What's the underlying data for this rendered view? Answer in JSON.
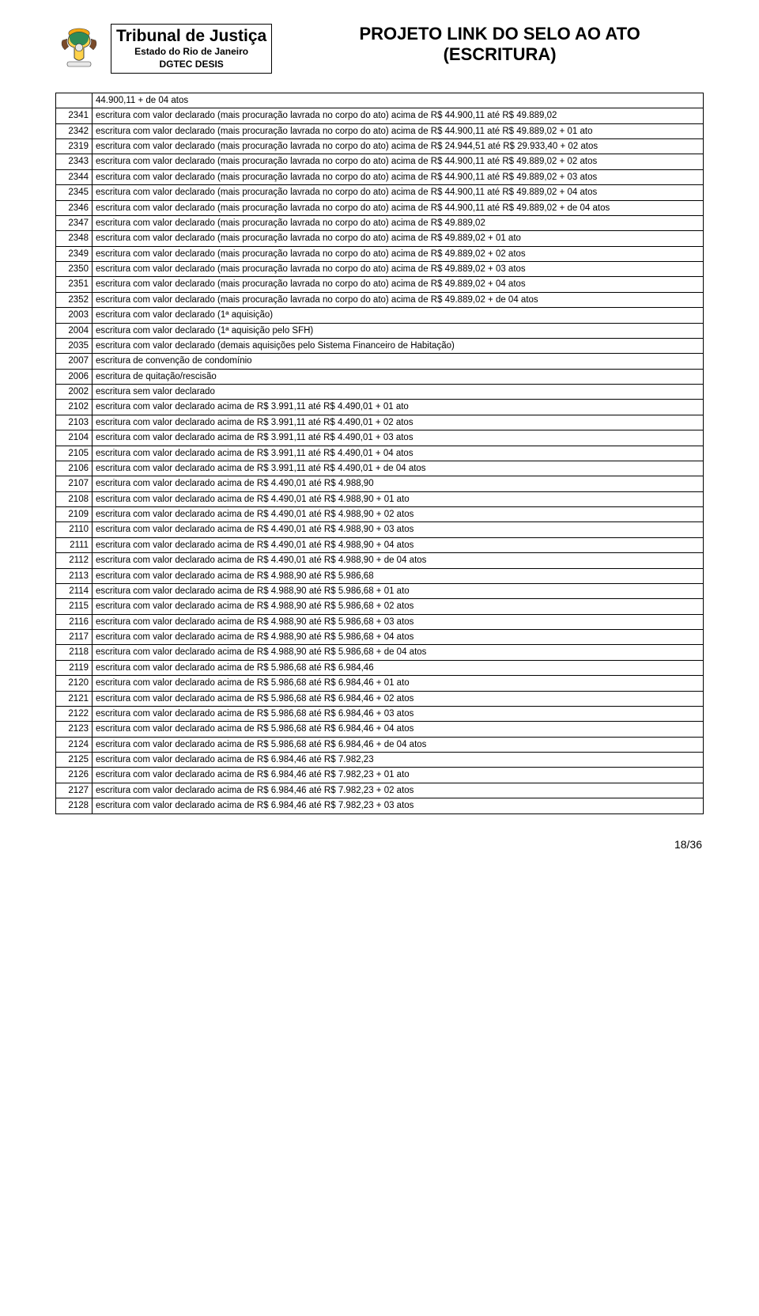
{
  "header": {
    "org_title": "Tribunal de Justiça",
    "org_sub1": "Estado do Rio de Janeiro",
    "org_sub2": "DGTEC DESIS",
    "proj_line1": "PROJETO LINK DO SELO AO ATO",
    "proj_line2": "(ESCRITURA)"
  },
  "footer": "18/36",
  "rows": [
    {
      "code": "",
      "desc": "44.900,11 + de 04 atos"
    },
    {
      "code": "2341",
      "desc": "escritura com valor  declarado (mais procuração lavrada no corpo do ato) acima de R$ 44.900,11 até R$ 49.889,02"
    },
    {
      "code": "2342",
      "desc": "escritura com valor declarado (mais procuração lavrada no corpo do ato) acima de R$ 44.900,11 até R$ 49.889,02 + 01 ato"
    },
    {
      "code": "2319",
      "desc": "escritura com valor declarado (mais procuração lavrada no corpo do ato) acima de R$ 24.944,51 até R$ 29.933,40 + 02 atos"
    },
    {
      "code": "2343",
      "desc": "escritura com valor declarado (mais procuração lavrada no corpo do ato) acima de R$ 44.900,11 até R$ 49.889,02 + 02 atos"
    },
    {
      "code": "2344",
      "desc": "escritura com valor declarado (mais procuração lavrada no corpo do ato) acima de R$ 44.900,11 até R$ 49.889,02 + 03 atos"
    },
    {
      "code": "2345",
      "desc": "escritura com valor declarado (mais procuração lavrada no corpo do ato) acima de R$ 44.900,11 até R$ 49.889,02 + 04 atos"
    },
    {
      "code": "2346",
      "desc": "escritura com valor declarado (mais procuração lavrada no corpo do ato) acima de R$ 44.900,11 até R$ 49.889,02 + de 04 atos"
    },
    {
      "code": "2347",
      "desc": "escritura com valor  declarado (mais procuração lavrada no corpo do ato) acima de R$ 49.889,02"
    },
    {
      "code": "2348",
      "desc": "escritura com valor declarado (mais procuração lavrada no corpo do ato) acima de R$ 49.889,02 + 01 ato"
    },
    {
      "code": "2349",
      "desc": "escritura com valor declarado (mais procuração lavrada no corpo do ato) acima de R$ 49.889,02 + 02 atos"
    },
    {
      "code": "2350",
      "desc": "escritura com valor declarado (mais procuração lavrada no corpo do ato) acima de R$ 49.889,02 + 03 atos"
    },
    {
      "code": "2351",
      "desc": "escritura com valor declarado (mais procuração lavrada no corpo do ato) acima de R$ 49.889,02 + 04 atos"
    },
    {
      "code": "2352",
      "desc": "escritura com valor declarado (mais procuração lavrada no corpo do ato) acima de R$ 49.889,02 + de 04 atos"
    },
    {
      "code": "2003",
      "desc": "escritura com valor declarado (1ª  aquisição)"
    },
    {
      "code": "2004",
      "desc": "escritura com valor declarado (1ª aquisição pelo SFH)"
    },
    {
      "code": "2035",
      "desc": "escritura com valor declarado (demais aquisições pelo Sistema Financeiro de Habitação)"
    },
    {
      "code": "2007",
      "desc": "escritura de convenção de condomínio"
    },
    {
      "code": "2006",
      "desc": "escritura de quitação/rescisão"
    },
    {
      "code": "2002",
      "desc": "escritura sem valor declarado"
    },
    {
      "code": "2102",
      "desc": "escritura com valor declarado acima de R$ 3.991,11 até R$ 4.490,01 + 01 ato"
    },
    {
      "code": "2103",
      "desc": "escritura com valor declarado acima de R$ 3.991,11 até R$ 4.490,01 + 02 atos"
    },
    {
      "code": "2104",
      "desc": "escritura com valor declarado acima de R$ 3.991,11 até R$ 4.490,01 + 03 atos"
    },
    {
      "code": "2105",
      "desc": "escritura com valor declarado acima de R$ 3.991,11 até R$ 4.490,01 + 04 atos"
    },
    {
      "code": "2106",
      "desc": "escritura com valor declarado acima de R$ 3.991,11 até R$ 4.490,01 + de 04 atos"
    },
    {
      "code": "2107",
      "desc": "escritura com valor declarado acima de R$ 4.490,01 até R$ 4.988,90"
    },
    {
      "code": "2108",
      "desc": "escritura com valor declarado acima de R$ 4.490,01 até R$ 4.988,90 + 01 ato"
    },
    {
      "code": "2109",
      "desc": "escritura com valor declarado acima de R$ 4.490,01 até R$ 4.988,90 + 02 atos"
    },
    {
      "code": "2110",
      "desc": "escritura com valor declarado acima de R$ 4.490,01 até R$ 4.988,90 + 03 atos"
    },
    {
      "code": "2111",
      "desc": "escritura com valor declarado acima de R$ 4.490,01 até R$ 4.988,90 + 04 atos"
    },
    {
      "code": "2112",
      "desc": "escritura com valor declarado acima de R$ 4.490,01 até R$ 4.988,90 + de 04 atos"
    },
    {
      "code": "2113",
      "desc": "escritura com valor declarado acima de R$ 4.988,90 até R$ 5.986,68"
    },
    {
      "code": "2114",
      "desc": "escritura com valor declarado acima de R$ 4.988,90 até R$ 5.986,68 + 01 ato"
    },
    {
      "code": "2115",
      "desc": "escritura com valor declarado acima de R$ 4.988,90 até R$ 5.986,68 + 02 atos"
    },
    {
      "code": "2116",
      "desc": "escritura com valor declarado acima de R$ 4.988,90 até R$ 5.986,68 + 03 atos"
    },
    {
      "code": "2117",
      "desc": "escritura com valor declarado acima de R$ 4.988,90 até R$ 5.986,68 + 04 atos"
    },
    {
      "code": "2118",
      "desc": "escritura com valor declarado acima de R$ 4.988,90 até R$ 5.986,68 + de 04 atos"
    },
    {
      "code": "2119",
      "desc": "escritura com valor declarado acima de R$ 5.986,68 até R$ 6.984,46"
    },
    {
      "code": "2120",
      "desc": "escritura com valor declarado acima de R$ 5.986,68 até R$ 6.984,46 + 01 ato"
    },
    {
      "code": "2121",
      "desc": "escritura com valor declarado acima de R$ 5.986,68 até R$ 6.984,46 + 02 atos"
    },
    {
      "code": "2122",
      "desc": "escritura com valor declarado acima de R$ 5.986,68 até R$ 6.984,46 + 03 atos"
    },
    {
      "code": "2123",
      "desc": "escritura com valor declarado acima de R$ 5.986,68 até R$ 6.984,46 + 04 atos"
    },
    {
      "code": "2124",
      "desc": "escritura com valor declarado acima de R$ 5.986,68 até R$ 6.984,46 + de 04 atos"
    },
    {
      "code": "2125",
      "desc": "escritura com valor declarado acima de R$ 6.984,46 até R$ 7.982,23"
    },
    {
      "code": "2126",
      "desc": "escritura com valor declarado acima de R$ 6.984,46 até R$ 7.982,23 + 01 ato"
    },
    {
      "code": "2127",
      "desc": "escritura com valor declarado acima de R$ 6.984,46 até R$ 7.982,23 + 02 atos"
    },
    {
      "code": "2128",
      "desc": "escritura com valor declarado acima de R$ 6.984,46 até R$ 7.982,23 + 03 atos"
    }
  ],
  "crest_colors": {
    "shield_top": "#2e8b57",
    "shield_bottom": "#ffd24a",
    "sun": "#f3a712",
    "eagle": "#7a4b2a",
    "scroll": "#e8e8e8",
    "outline": "#333333"
  }
}
